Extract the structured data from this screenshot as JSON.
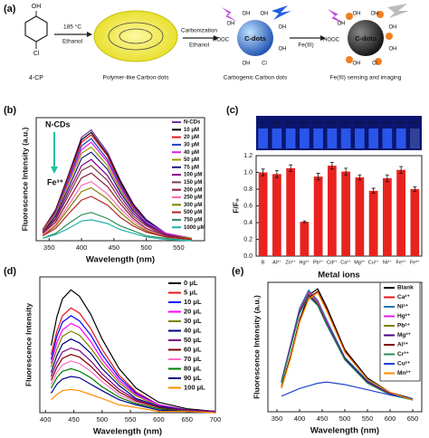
{
  "scheme": {
    "panel_label": "(a)",
    "reactant_groups": [
      "OH",
      "Cl"
    ],
    "reactant": "4-CP",
    "conditions": [
      "185 °C",
      "Ethanol"
    ],
    "polymer_dots": "Polymer-like Carbon dots",
    "carbonization": [
      "Carbonization",
      "Ethanol"
    ],
    "carbogenic_dots": "Carbogenic Carbon dots",
    "dot_label": "C-dots",
    "dot_groups": [
      "OH",
      "OH",
      "OH",
      "HOOC",
      "OH",
      "OH",
      "Cl",
      "OH"
    ],
    "reagent": "Fe(III)",
    "final_dots": "Fe(III) sensing and imaging"
  },
  "chart_data": [
    {
      "type": "line",
      "panel_label": "(b)",
      "x_label": "Wavelength (nm)",
      "y_label": "Fluorescence Intensity (a.u.)",
      "annotations": [
        "N-CDs",
        "Fe³⁺"
      ],
      "legend": "upper right",
      "x": [
        340,
        360,
        380,
        400,
        415,
        440,
        460,
        480,
        500,
        530,
        570
      ],
      "xlim": [
        330,
        590
      ],
      "xticks": [
        350,
        400,
        450,
        500,
        550
      ],
      "ylim": [
        0,
        100
      ],
      "series": [
        {
          "name": "N-CDs",
          "color": "#7030a0",
          "values": [
            9,
            25,
            54,
            84,
            90,
            72,
            49,
            30,
            17,
            6,
            2
          ]
        },
        {
          "name": "10 μM",
          "color": "#000000",
          "values": [
            9,
            25,
            53,
            82,
            88,
            70,
            48,
            29,
            17,
            6,
            2
          ]
        },
        {
          "name": "20 μM",
          "color": "#e41a1c",
          "values": [
            9,
            24,
            52,
            80,
            86,
            69,
            46,
            28,
            16,
            6,
            2
          ]
        },
        {
          "name": "30 μM",
          "color": "#1f3fbf",
          "values": [
            8,
            23,
            50,
            77,
            83,
            66,
            45,
            27,
            16,
            6,
            2
          ]
        },
        {
          "name": "40 μM",
          "color": "#e020e0",
          "values": [
            8,
            22,
            48,
            74,
            80,
            64,
            43,
            26,
            15,
            6,
            2
          ]
        },
        {
          "name": "50 μM",
          "color": "#9a9a00",
          "values": [
            8,
            21,
            46,
            71,
            76,
            61,
            41,
            25,
            14,
            5,
            2
          ]
        },
        {
          "name": "75 μM",
          "color": "#1a1a80",
          "values": [
            7,
            20,
            43,
            67,
            72,
            58,
            39,
            24,
            14,
            5,
            1
          ]
        },
        {
          "name": "100 μM",
          "color": "#8b008b",
          "values": [
            7,
            18,
            40,
            61,
            66,
            53,
            36,
            22,
            13,
            5,
            1
          ]
        },
        {
          "name": "150 μM",
          "color": "#7b3f3f",
          "values": [
            6,
            17,
            37,
            57,
            61,
            49,
            33,
            20,
            12,
            4,
            1
          ]
        },
        {
          "name": "200 μM",
          "color": "#8b1a3a",
          "values": [
            6,
            15,
            33,
            51,
            55,
            44,
            30,
            18,
            10,
            4,
            1
          ]
        },
        {
          "name": "250 μM",
          "color": "#ff69b4",
          "values": [
            5,
            13,
            29,
            45,
            48,
            38,
            26,
            16,
            9,
            3,
            1
          ]
        },
        {
          "name": "300 μM",
          "color": "#808000",
          "values": [
            4,
            12,
            26,
            40,
            43,
            34,
            23,
            14,
            8,
            3,
            1
          ]
        },
        {
          "name": "500 μM",
          "color": "#b22222",
          "values": [
            4,
            10,
            22,
            33,
            36,
            29,
            19,
            12,
            7,
            3,
            1
          ]
        },
        {
          "name": "750 μM",
          "color": "#2e8b57",
          "values": [
            2,
            6,
            14,
            21,
            23,
            18,
            12,
            8,
            4,
            2,
            0
          ]
        },
        {
          "name": "1000 μM",
          "color": "#20b2aa",
          "values": [
            2,
            5,
            10,
            16,
            17,
            14,
            9,
            6,
            3,
            1,
            0
          ]
        }
      ]
    },
    {
      "type": "bar",
      "panel_label": "(c)",
      "x_label": "Metal ions",
      "y_label": "F/F₀",
      "color": "#e8231f",
      "categories": [
        "B",
        "Al³⁺",
        "Zn²⁺",
        "Hg²⁺",
        "Pb²⁺",
        "Cd²⁺",
        "Ca²⁺",
        "Mg²⁺",
        "Cu²⁺",
        "Ni²⁺",
        "Fe²⁺",
        "Fe³⁺"
      ],
      "values": [
        1.0,
        0.98,
        1.05,
        0.41,
        0.95,
        1.08,
        1.01,
        0.94,
        0.78,
        0.93,
        1.03,
        0.8
      ],
      "errors": [
        0.04,
        0.04,
        0.04,
        0.01,
        0.04,
        0.04,
        0.04,
        0.03,
        0.03,
        0.04,
        0.04,
        0.03
      ],
      "ylim": [
        0,
        1.2
      ],
      "yticks": [
        {
          "value": 0,
          "label": "0.0"
        },
        {
          "value": 0.2,
          "label": "0.2"
        },
        {
          "value": 0.4,
          "label": "0.4"
        },
        {
          "value": 0.6,
          "label": "0.6"
        },
        {
          "value": 0.8,
          "label": "0.8"
        },
        {
          "value": 1.0,
          "label": "1.0"
        },
        {
          "value": 1.2,
          "label": "1.2"
        }
      ]
    },
    {
      "type": "line",
      "panel_label": "(d)",
      "x_label": "Wavelength (nm)",
      "y_label": "Fluorescence Intensity",
      "legend": "upper right",
      "x": [
        410,
        420,
        430,
        445,
        460,
        480,
        500,
        530,
        560,
        600,
        650,
        700
      ],
      "xlim": [
        390,
        700
      ],
      "xticks": [
        400,
        450,
        500,
        550,
        600,
        650,
        700
      ],
      "ylim": [
        0,
        105
      ],
      "series": [
        {
          "name": "0 μL",
          "color": "#000000",
          "values": [
            52,
            74,
            88,
            95,
            90,
            76,
            57,
            34,
            19,
            8,
            3,
            1
          ]
        },
        {
          "name": "5 μL",
          "color": "#e41a1c",
          "values": [
            45,
            63,
            75,
            81,
            77,
            65,
            49,
            29,
            16,
            6,
            2,
            1
          ]
        },
        {
          "name": "10 μL",
          "color": "#0000ff",
          "values": [
            41,
            59,
            70,
            75,
            71,
            60,
            45,
            27,
            15,
            6,
            2,
            1
          ]
        },
        {
          "name": "20 μL",
          "color": "#ff00ff",
          "values": [
            38,
            54,
            64,
            69,
            66,
            55,
            41,
            25,
            14,
            6,
            2,
            1
          ]
        },
        {
          "name": "30 μL",
          "color": "#808000",
          "values": [
            35,
            49,
            59,
            63,
            60,
            50,
            38,
            23,
            13,
            5,
            2,
            1
          ]
        },
        {
          "name": "40 μL",
          "color": "#000080",
          "values": [
            31,
            44,
            53,
            57,
            54,
            46,
            34,
            21,
            11,
            5,
            2,
            1
          ]
        },
        {
          "name": "50 μL",
          "color": "#800080",
          "values": [
            28,
            39,
            47,
            50,
            48,
            40,
            30,
            18,
            10,
            4,
            2,
            1
          ]
        },
        {
          "name": "60 μL",
          "color": "#800000",
          "values": [
            25,
            35,
            42,
            45,
            43,
            36,
            27,
            16,
            9,
            4,
            1,
            0
          ]
        },
        {
          "name": "70 μL",
          "color": "#ff6ec7",
          "values": [
            22,
            31,
            37,
            40,
            38,
            32,
            24,
            14,
            8,
            3,
            1,
            0
          ]
        },
        {
          "name": "80 μL",
          "color": "#008000",
          "values": [
            19,
            27,
            32,
            34,
            32,
            27,
            20,
            12,
            7,
            3,
            1,
            0
          ]
        },
        {
          "name": "90 μL",
          "color": "#00008b",
          "values": [
            15,
            22,
            26,
            28,
            27,
            22,
            17,
            10,
            6,
            2,
            1,
            0
          ]
        },
        {
          "name": "100 μL",
          "color": "#ff8c00",
          "values": [
            10,
            14,
            17,
            18,
            17,
            14,
            11,
            6,
            4,
            1,
            1,
            0
          ]
        }
      ]
    },
    {
      "type": "line",
      "panel_label": "(e)",
      "x_label": "Wavelength (nm)",
      "y_label": "Fluorescence Intensity (a.u.)",
      "legend": "upper right",
      "x": [
        360,
        380,
        400,
        420,
        440,
        460,
        500,
        550,
        600,
        650
      ],
      "xlim": [
        330,
        670
      ],
      "xticks": [
        350,
        400,
        450,
        500,
        550,
        600,
        650
      ],
      "ylim": [
        0,
        100
      ],
      "series": [
        {
          "name": "Blank",
          "color": "#000000",
          "values": [
            19,
            43,
            71,
            90,
            95,
            81,
            48,
            26,
            15,
            10
          ]
        },
        {
          "name": "Ca²⁺",
          "color": "#e41a1c",
          "values": [
            23,
            51,
            79,
            93,
            86,
            70,
            42,
            23,
            14,
            9
          ]
        },
        {
          "name": "Ni²⁺",
          "color": "#1f77b4",
          "values": [
            24,
            52,
            80,
            94,
            86,
            71,
            42,
            24,
            14,
            9
          ]
        },
        {
          "name": "Hg²⁺",
          "color": "#e020e0",
          "values": [
            23,
            51,
            78,
            92,
            85,
            69,
            41,
            23,
            14,
            9
          ]
        },
        {
          "name": "Pb²⁺",
          "color": "#808000",
          "values": [
            23,
            50,
            77,
            91,
            84,
            68,
            41,
            23,
            14,
            9
          ]
        },
        {
          "name": "Mg²⁺",
          "color": "#4b0082",
          "values": [
            23,
            50,
            77,
            90,
            83,
            68,
            41,
            23,
            14,
            9
          ]
        },
        {
          "name": "Al³⁺",
          "color": "#800000",
          "values": [
            19,
            42,
            70,
            88,
            93,
            79,
            47,
            25,
            15,
            9
          ]
        },
        {
          "name": "Cr³⁺",
          "color": "#2e8b57",
          "values": [
            22,
            49,
            76,
            89,
            82,
            67,
            40,
            22,
            13,
            9
          ]
        },
        {
          "name": "Cu²⁺",
          "color": "#2244cc",
          "values": [
            12,
            15,
            18,
            20,
            22,
            23,
            21,
            17,
            13,
            10
          ]
        },
        {
          "name": "Mn²⁺",
          "color": "#ff8c00",
          "values": [
            18,
            41,
            69,
            87,
            92,
            78,
            46,
            25,
            15,
            9
          ]
        }
      ]
    }
  ]
}
